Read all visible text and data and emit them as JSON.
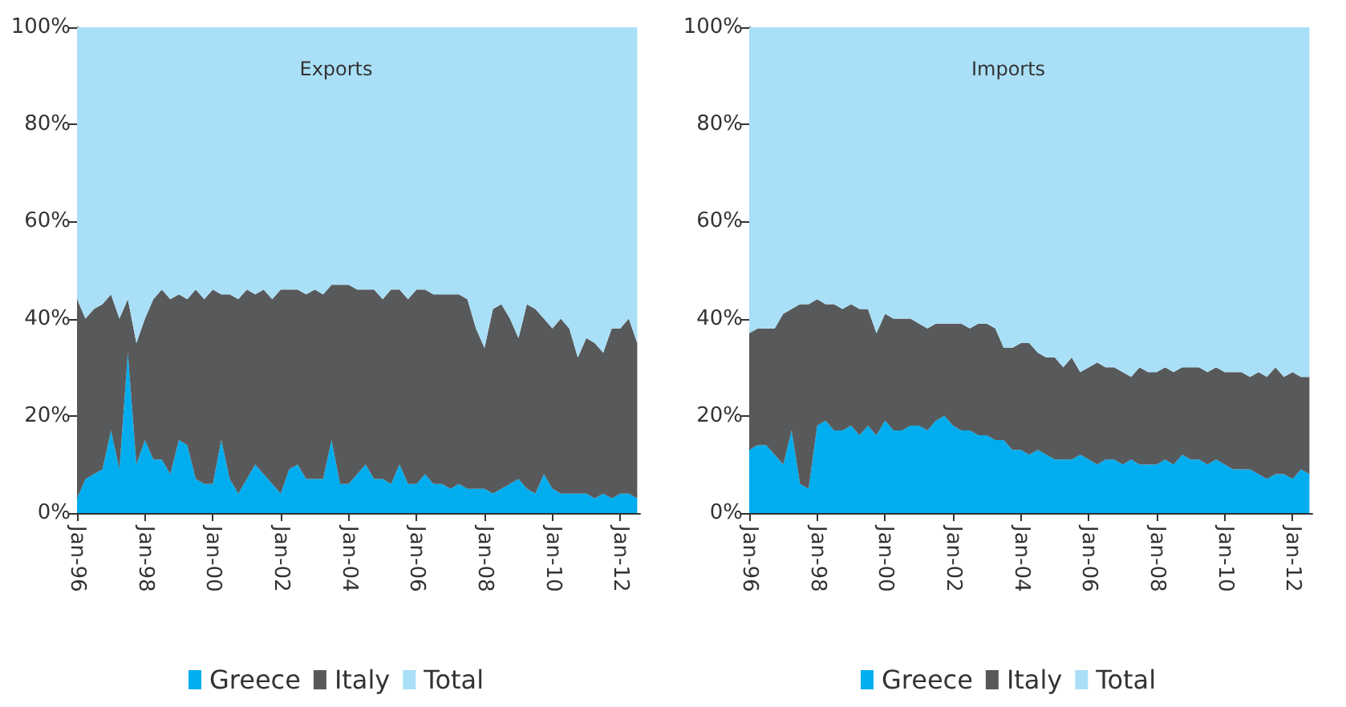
{
  "chart_data": [
    {
      "type": "area",
      "title": "Exports",
      "stacked": true,
      "legend": "bottom",
      "grid": false,
      "x": [
        "1996-01",
        "1996-04",
        "1996-07",
        "1996-10",
        "1997-01",
        "1997-04",
        "1997-07",
        "1997-10",
        "1998-01",
        "1998-04",
        "1998-07",
        "1998-10",
        "1999-01",
        "1999-04",
        "1999-07",
        "1999-10",
        "2000-01",
        "2000-04",
        "2000-07",
        "2000-10",
        "2001-01",
        "2001-04",
        "2001-07",
        "2001-10",
        "2002-01",
        "2002-04",
        "2002-07",
        "2002-10",
        "2003-01",
        "2003-04",
        "2003-07",
        "2003-10",
        "2004-01",
        "2004-04",
        "2004-07",
        "2004-10",
        "2005-01",
        "2005-04",
        "2005-07",
        "2005-10",
        "2006-01",
        "2006-04",
        "2006-07",
        "2006-10",
        "2007-01",
        "2007-04",
        "2007-07",
        "2007-10",
        "2008-01",
        "2008-04",
        "2008-07",
        "2008-10",
        "2009-01",
        "2009-04",
        "2009-07",
        "2009-10",
        "2010-01",
        "2010-04",
        "2010-07",
        "2010-10",
        "2011-01",
        "2011-04",
        "2011-07",
        "2011-10",
        "2012-01",
        "2012-04",
        "2012-07"
      ],
      "xlim": [
        "1996-01",
        "2012-08"
      ],
      "xticks": [
        {
          "value": "1996-01",
          "label": "Jan-96"
        },
        {
          "value": "1998-01",
          "label": "Jan-98"
        },
        {
          "value": "2000-01",
          "label": "Jan-00"
        },
        {
          "value": "2002-01",
          "label": "Jan-02"
        },
        {
          "value": "2004-01",
          "label": "Jan-04"
        },
        {
          "value": "2006-01",
          "label": "Jan-06"
        },
        {
          "value": "2008-01",
          "label": "Jan-08"
        },
        {
          "value": "2010-01",
          "label": "Jan-10"
        },
        {
          "value": "2012-01",
          "label": "Jan-12"
        }
      ],
      "ylim": [
        0,
        100
      ],
      "yticks": [
        {
          "value": 0,
          "label": "0%"
        },
        {
          "value": 20,
          "label": "20%"
        },
        {
          "value": 40,
          "label": "40%"
        },
        {
          "value": 60,
          "label": "60%"
        },
        {
          "value": 80,
          "label": "80%"
        },
        {
          "value": 100,
          "label": "100%"
        }
      ],
      "series": [
        {
          "name": "Greece",
          "color": "#00aeef",
          "values": [
            3,
            7,
            8,
            9,
            17,
            9,
            33,
            10,
            15,
            11,
            11,
            8,
            15,
            14,
            7,
            6,
            6,
            15,
            7,
            4,
            7,
            10,
            8,
            6,
            4,
            9,
            10,
            7,
            7,
            7,
            15,
            6,
            6,
            8,
            10,
            7,
            7,
            6,
            10,
            6,
            6,
            8,
            6,
            6,
            5,
            6,
            5,
            5,
            5,
            4,
            5,
            6,
            7,
            5,
            4,
            8,
            5,
            4,
            4,
            4,
            4,
            3,
            4,
            3,
            4,
            4,
            3
          ]
        },
        {
          "name": "Italy",
          "color": "#58595b",
          "values": [
            41,
            33,
            34,
            34,
            28,
            31,
            11,
            25,
            25,
            33,
            35,
            36,
            30,
            30,
            39,
            38,
            40,
            30,
            38,
            40,
            39,
            35,
            38,
            38,
            42,
            37,
            36,
            38,
            39,
            38,
            32,
            41,
            41,
            38,
            36,
            39,
            37,
            40,
            36,
            38,
            40,
            38,
            39,
            39,
            40,
            39,
            39,
            33,
            29,
            38,
            38,
            34,
            29,
            38,
            38,
            32,
            33,
            36,
            34,
            28,
            32,
            32,
            29,
            35,
            34,
            36,
            32
          ]
        },
        {
          "name": "Total",
          "color": "#a9dff7",
          "values": [
            56,
            60,
            58,
            57,
            55,
            60,
            56,
            65,
            60,
            56,
            54,
            56,
            55,
            56,
            54,
            56,
            54,
            55,
            55,
            56,
            54,
            55,
            54,
            56,
            54,
            54,
            54,
            55,
            54,
            55,
            53,
            53,
            53,
            54,
            54,
            54,
            56,
            54,
            54,
            56,
            54,
            54,
            55,
            55,
            55,
            55,
            56,
            62,
            66,
            58,
            57,
            60,
            64,
            57,
            58,
            60,
            62,
            60,
            62,
            68,
            64,
            65,
            67,
            62,
            62,
            60,
            65
          ]
        }
      ]
    },
    {
      "type": "area",
      "title": "Imports",
      "stacked": true,
      "legend": "bottom",
      "grid": false,
      "x": [
        "1996-01",
        "1996-04",
        "1996-07",
        "1996-10",
        "1997-01",
        "1997-04",
        "1997-07",
        "1997-10",
        "1998-01",
        "1998-04",
        "1998-07",
        "1998-10",
        "1999-01",
        "1999-04",
        "1999-07",
        "1999-10",
        "2000-01",
        "2000-04",
        "2000-07",
        "2000-10",
        "2001-01",
        "2001-04",
        "2001-07",
        "2001-10",
        "2002-01",
        "2002-04",
        "2002-07",
        "2002-10",
        "2003-01",
        "2003-04",
        "2003-07",
        "2003-10",
        "2004-01",
        "2004-04",
        "2004-07",
        "2004-10",
        "2005-01",
        "2005-04",
        "2005-07",
        "2005-10",
        "2006-01",
        "2006-04",
        "2006-07",
        "2006-10",
        "2007-01",
        "2007-04",
        "2007-07",
        "2007-10",
        "2008-01",
        "2008-04",
        "2008-07",
        "2008-10",
        "2009-01",
        "2009-04",
        "2009-07",
        "2009-10",
        "2010-01",
        "2010-04",
        "2010-07",
        "2010-10",
        "2011-01",
        "2011-04",
        "2011-07",
        "2011-10",
        "2012-01",
        "2012-04",
        "2012-07"
      ],
      "xlim": [
        "1996-01",
        "2012-08"
      ],
      "xticks": [
        {
          "value": "1996-01",
          "label": "Jan-96"
        },
        {
          "value": "1998-01",
          "label": "Jan-98"
        },
        {
          "value": "2000-01",
          "label": "Jan-00"
        },
        {
          "value": "2002-01",
          "label": "Jan-02"
        },
        {
          "value": "2004-01",
          "label": "Jan-04"
        },
        {
          "value": "2006-01",
          "label": "Jan-06"
        },
        {
          "value": "2008-01",
          "label": "Jan-08"
        },
        {
          "value": "2010-01",
          "label": "Jan-10"
        },
        {
          "value": "2012-01",
          "label": "Jan-12"
        }
      ],
      "ylim": [
        0,
        100
      ],
      "yticks": [
        {
          "value": 0,
          "label": "0%"
        },
        {
          "value": 20,
          "label": "20%"
        },
        {
          "value": 40,
          "label": "40%"
        },
        {
          "value": 60,
          "label": "60%"
        },
        {
          "value": 80,
          "label": "80%"
        },
        {
          "value": 100,
          "label": "100%"
        }
      ],
      "series": [
        {
          "name": "Greece",
          "color": "#00aeef",
          "values": [
            13,
            14,
            14,
            12,
            10,
            17,
            6,
            5,
            18,
            19,
            17,
            17,
            18,
            16,
            18,
            16,
            19,
            17,
            17,
            18,
            18,
            17,
            19,
            20,
            18,
            17,
            17,
            16,
            16,
            15,
            15,
            13,
            13,
            12,
            13,
            12,
            11,
            11,
            11,
            12,
            11,
            10,
            11,
            11,
            10,
            11,
            10,
            10,
            10,
            11,
            10,
            12,
            11,
            11,
            10,
            11,
            10,
            9,
            9,
            9,
            8,
            7,
            8,
            8,
            7,
            9,
            8
          ]
        },
        {
          "name": "Italy",
          "color": "#58595b",
          "values": [
            24,
            24,
            24,
            26,
            31,
            25,
            37,
            38,
            26,
            24,
            26,
            25,
            25,
            26,
            24,
            21,
            22,
            23,
            23,
            22,
            21,
            21,
            20,
            19,
            21,
            22,
            21,
            23,
            23,
            23,
            19,
            21,
            22,
            23,
            20,
            20,
            21,
            19,
            21,
            17,
            19,
            21,
            19,
            19,
            19,
            17,
            20,
            19,
            19,
            19,
            19,
            18,
            19,
            19,
            19,
            19,
            19,
            20,
            20,
            19,
            21,
            21,
            22,
            20,
            22,
            19,
            20
          ]
        },
        {
          "name": "Total",
          "color": "#a9dff7",
          "values": [
            63,
            62,
            62,
            62,
            59,
            58,
            57,
            57,
            56,
            57,
            57,
            58,
            57,
            58,
            58,
            63,
            59,
            60,
            60,
            60,
            61,
            62,
            61,
            61,
            61,
            61,
            62,
            61,
            61,
            62,
            66,
            66,
            65,
            65,
            67,
            68,
            68,
            70,
            68,
            71,
            70,
            69,
            70,
            70,
            71,
            72,
            70,
            71,
            71,
            70,
            71,
            70,
            70,
            70,
            71,
            70,
            71,
            71,
            71,
            72,
            71,
            72,
            70,
            72,
            71,
            72,
            72
          ]
        }
      ]
    }
  ]
}
